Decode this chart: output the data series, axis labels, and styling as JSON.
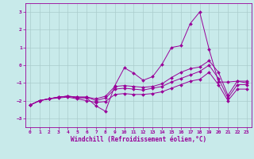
{
  "xlabel": "Windchill (Refroidissement éolien,°C)",
  "background_color": "#c8eaea",
  "line_color": "#990099",
  "grid_color": "#aacccc",
  "xlim": [
    -0.5,
    23.5
  ],
  "ylim": [
    -3.5,
    3.5
  ],
  "yticks": [
    -3,
    -2,
    -1,
    0,
    1,
    2,
    3
  ],
  "xticks": [
    0,
    1,
    2,
    3,
    4,
    5,
    6,
    7,
    8,
    9,
    10,
    11,
    12,
    13,
    14,
    15,
    16,
    17,
    18,
    19,
    20,
    21,
    22,
    23
  ],
  "series": [
    [
      -2.25,
      -2.0,
      -1.9,
      -1.8,
      -1.75,
      -1.85,
      -1.85,
      -2.3,
      -2.6,
      -1.15,
      -0.15,
      -0.45,
      -0.85,
      -0.65,
      0.05,
      1.0,
      1.1,
      2.35,
      3.0,
      0.9,
      -0.95,
      -0.95,
      -0.9,
      -1.0
    ],
    [
      -2.25,
      -2.0,
      -1.9,
      -1.8,
      -1.75,
      -1.8,
      -1.8,
      -1.9,
      -1.75,
      -1.2,
      -1.15,
      -1.2,
      -1.25,
      -1.2,
      -1.05,
      -0.7,
      -0.4,
      -0.2,
      -0.1,
      0.25,
      -0.4,
      -1.7,
      -0.9,
      -0.9
    ],
    [
      -2.25,
      -2.0,
      -1.9,
      -1.8,
      -1.75,
      -1.8,
      -1.8,
      -2.0,
      -1.85,
      -1.35,
      -1.3,
      -1.35,
      -1.4,
      -1.3,
      -1.2,
      -0.95,
      -0.75,
      -0.55,
      -0.35,
      0.0,
      -0.75,
      -1.85,
      -1.1,
      -1.1
    ],
    [
      -2.25,
      -2.0,
      -1.9,
      -1.85,
      -1.8,
      -1.9,
      -2.0,
      -2.1,
      -2.05,
      -1.65,
      -1.6,
      -1.65,
      -1.65,
      -1.6,
      -1.5,
      -1.3,
      -1.1,
      -0.9,
      -0.8,
      -0.4,
      -1.1,
      -2.0,
      -1.35,
      -1.35
    ]
  ]
}
